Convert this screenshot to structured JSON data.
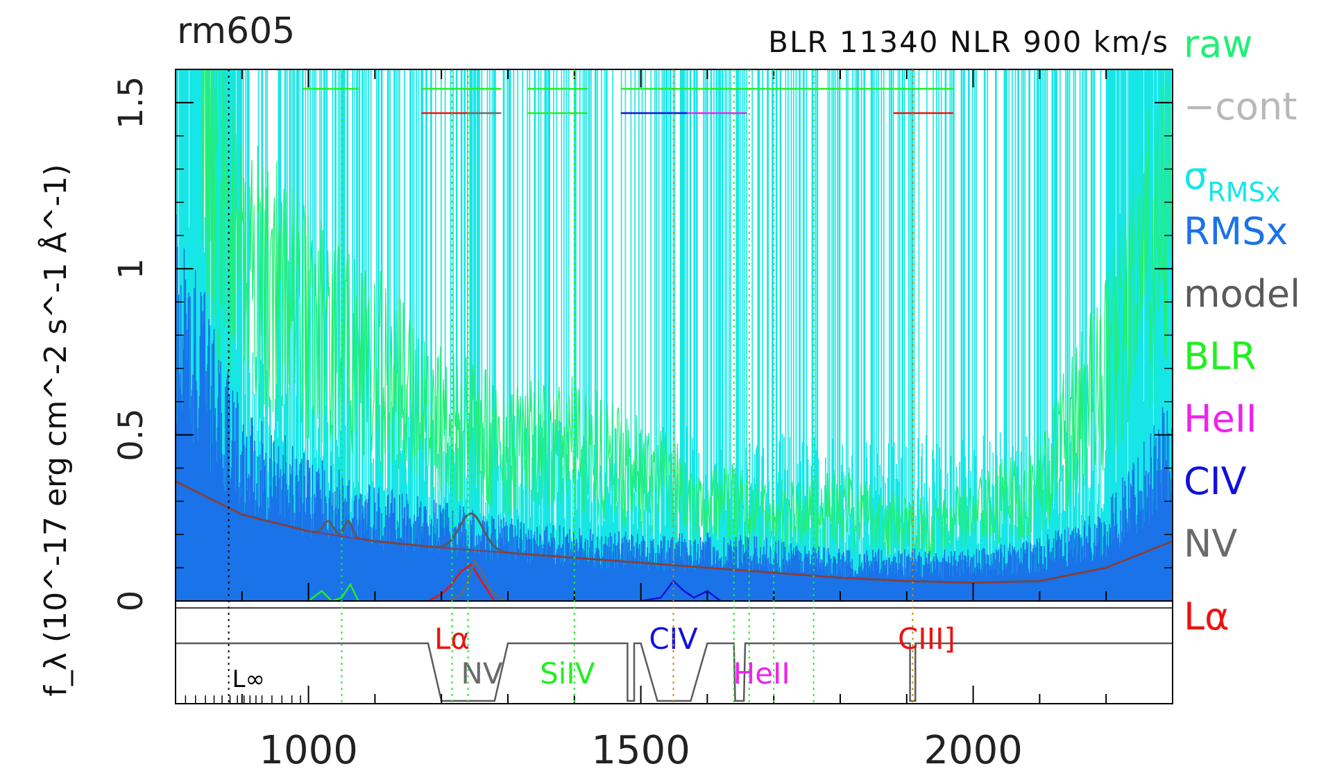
{
  "chart_data": {
    "type": "line",
    "object_name": "rm605",
    "subtitle": "BLR 11340 NLR 900 km/s",
    "ylabel": "f_λ (10^-17 erg cm^-2 s^-1 Å^-1)",
    "ylim": [
      0,
      1.6
    ],
    "xlim": [
      800,
      2300
    ],
    "y_ticks": [
      0,
      0.5,
      1,
      1.5
    ],
    "y_tick_labels": [
      "0",
      "0.5",
      "1",
      "1.5"
    ],
    "x_ticks": [
      1000,
      1500,
      2000
    ],
    "x_tick_labels": [
      "1000",
      "1500",
      "2000"
    ],
    "x_limit_marker": {
      "label": "L∞",
      "x": 880
    },
    "grid": false,
    "legend_position": "right, outside plot",
    "legend": [
      {
        "label": "raw",
        "color": "#22ee77"
      },
      {
        "label": "−cont",
        "color": "#b8b8b8"
      },
      {
        "label": "σRMSx",
        "base": "σ",
        "sub": "RMSx",
        "color": "#17e6e6"
      },
      {
        "label": "RMSx",
        "color": "#1a73e8"
      },
      {
        "label": "model",
        "color": "#5a5a5a"
      },
      {
        "label": "BLR",
        "color": "#22ee22"
      },
      {
        "label": "HeII",
        "color": "#ee22ee"
      },
      {
        "label": "CIV",
        "color": "#1010dd"
      },
      {
        "label": "NV",
        "color": "#6a6a6a"
      },
      {
        "label": "Lα",
        "color": "#ee1111"
      }
    ],
    "continuum_model": {
      "color": "#5a5a5a",
      "x": [
        800,
        900,
        1000,
        1100,
        1200,
        1300,
        1400,
        1500,
        1600,
        1700,
        1800,
        1900,
        2000,
        2100,
        2200,
        2300
      ],
      "y": [
        0.36,
        0.26,
        0.21,
        0.18,
        0.16,
        0.145,
        0.13,
        0.115,
        0.1,
        0.085,
        0.07,
        0.06,
        0.055,
        0.06,
        0.1,
        0.18
      ]
    },
    "raw_envelope": {
      "color": "#22ee77",
      "x": [
        800,
        900,
        1000,
        1100,
        1200,
        1250,
        1300,
        1400,
        1500,
        1600,
        1700,
        1800,
        1900,
        2000,
        2100,
        2200,
        2300
      ],
      "y": [
        1.5,
        1.05,
        0.85,
        0.7,
        0.55,
        0.5,
        0.45,
        0.48,
        0.38,
        0.3,
        0.25,
        0.28,
        0.22,
        0.25,
        0.35,
        0.7,
        1.2
      ]
    },
    "rmsx_envelope": {
      "color": "#1a73e8",
      "x": [
        800,
        900,
        1000,
        1100,
        1200,
        1300,
        1400,
        1500,
        1600,
        1700,
        1800,
        1900,
        2000,
        2100,
        2200,
        2300
      ],
      "y": [
        0.75,
        0.38,
        0.28,
        0.22,
        0.19,
        0.16,
        0.14,
        0.13,
        0.13,
        0.12,
        0.1,
        0.1,
        0.1,
        0.12,
        0.18,
        0.42
      ]
    },
    "line_components": [
      {
        "name": "Lα",
        "color": "#ee1111",
        "x": [
          1180,
          1200,
          1215,
          1230,
          1245,
          1260,
          1280
        ],
        "y": [
          0,
          0.02,
          0.05,
          0.09,
          0.11,
          0.06,
          0
        ]
      },
      {
        "name": "NV",
        "color": "#6a6a6a",
        "x": [
          1210,
          1230,
          1240,
          1250,
          1260,
          1275,
          1295
        ],
        "y": [
          0,
          0.02,
          0.06,
          0.12,
          0.09,
          0.03,
          0
        ]
      },
      {
        "name": "CIV",
        "color": "#1010dd",
        "x": [
          1500,
          1530,
          1549,
          1565,
          1580,
          1600,
          1620
        ],
        "y": [
          0,
          0.01,
          0.06,
          0.03,
          0.01,
          0.03,
          0
        ]
      },
      {
        "name": "BLR",
        "color": "#22ee22",
        "x": [
          1000,
          1020,
          1035,
          1050,
          1063,
          1075
        ],
        "y": [
          0,
          0.03,
          0,
          0.01,
          0.05,
          0
        ]
      }
    ],
    "line_markers": [
      {
        "label": "Lα",
        "x": 1216,
        "color": "#ee1111"
      },
      {
        "label": "NV",
        "x": 1240,
        "color": "#6a6a6a"
      },
      {
        "label": "SiIV",
        "x": 1400,
        "color": "#22ee22"
      },
      {
        "label": "CIV",
        "x": 1549,
        "color": "#1010dd"
      },
      {
        "label": "HeII",
        "x": 1640,
        "color": "#ee22ee"
      },
      {
        "label": "CIII]",
        "x": 1909,
        "color": "#ee1111"
      }
    ],
    "fit_windows": [
      {
        "color": "#22ee22",
        "x": [
          990,
          1075
        ]
      },
      {
        "color": "#22ee22",
        "x": [
          1170,
          1290
        ]
      },
      {
        "color": "#22ee22",
        "x": [
          1330,
          1420
        ]
      },
      {
        "color": "#22ee22",
        "x": [
          1330,
          1420
        ]
      },
      {
        "color": "#22ee22",
        "x": [
          1470,
          1970
        ]
      },
      {
        "color": "#ee1111",
        "x": [
          1170,
          1240
        ]
      },
      {
        "color": "#6a6a6a",
        "x": [
          1240,
          1290
        ]
      },
      {
        "color": "#1010dd",
        "x": [
          1470,
          1570
        ]
      },
      {
        "color": "#ee22ee",
        "x": [
          1570,
          1660
        ]
      },
      {
        "color": "#ee1111",
        "x": [
          1880,
          1970
        ]
      }
    ]
  }
}
